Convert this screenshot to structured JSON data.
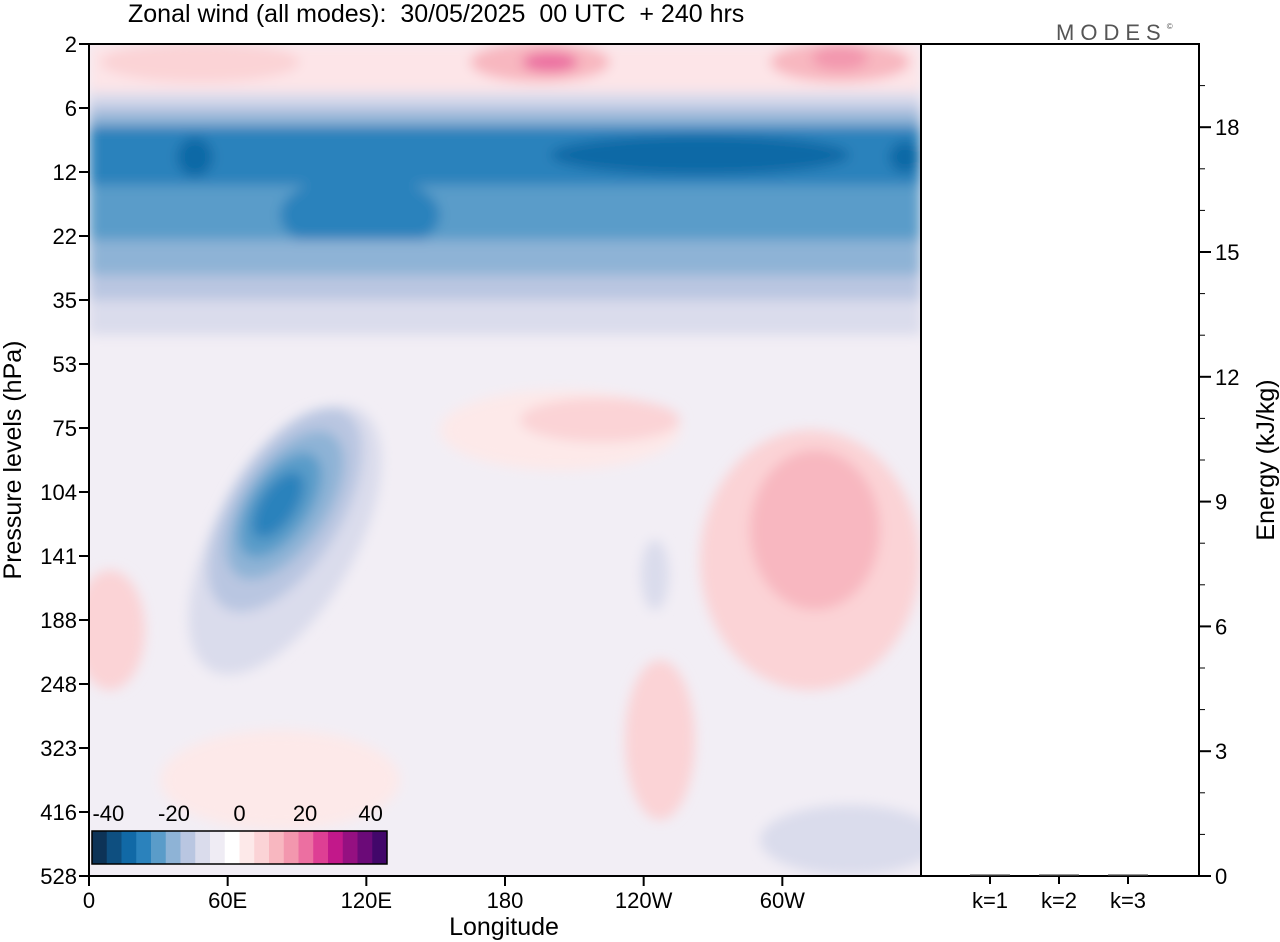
{
  "header": {
    "title": "Zonal wind (all modes):  30/05/2025  00 UTC  + 240 hrs",
    "brand": "MODES",
    "brand_mark": "©"
  },
  "colors": {
    "contour_palette": [
      "#0d3357",
      "#0e4f80",
      "#1169a6",
      "#2b82bc",
      "#5a9cc9",
      "#8eb3d6",
      "#b9c6e1",
      "#dadcec",
      "#efecf4",
      "#ffffff",
      "#fde9e9",
      "#fbd3d6",
      "#f8b7c0",
      "#f397ae",
      "#ec6fa1",
      "#de3f94",
      "#c2188a",
      "#951081",
      "#6b0a78",
      "#42076a"
    ]
  },
  "chart_data": [
    {
      "type": "heatmap",
      "title": "Zonal wind (all modes):  30/05/2025  00 UTC  + 240 hrs",
      "xlabel": "Longitude",
      "ylabel": "Pressure levels (hPa)",
      "x_ticks": [
        "0",
        "60E",
        "120E",
        "180",
        "120W",
        "60W"
      ],
      "y_ticks": [
        "2",
        "6",
        "12",
        "22",
        "35",
        "53",
        "75",
        "104",
        "141",
        "188",
        "248",
        "323",
        "416",
        "528"
      ],
      "colorbar": {
        "tick_labels": [
          "-40",
          "-20",
          "0",
          "20",
          "40"
        ],
        "range": [
          -45,
          45
        ],
        "step": 5
      },
      "features": [
        {
          "name": "upper easterly core",
          "lon_range": [
            0,
            360
          ],
          "levels": "8-14 hPa",
          "value": -35
        },
        {
          "name": "easterly band",
          "lon_range": [
            0,
            360
          ],
          "levels": "14-35 hPa",
          "value": -25
        },
        {
          "name": "upper westerly patch",
          "lon": 300,
          "levels": "2-4 hPa",
          "value": 15
        },
        {
          "name": "easterly jet",
          "lon": 80,
          "levels": "104-141 hPa",
          "value": -25
        },
        {
          "name": "westerly patch",
          "lon": 320,
          "levels": "104-188 hPa",
          "value": 10
        }
      ]
    },
    {
      "type": "bar",
      "categories": [
        "k=1",
        "k=2",
        "k=3"
      ],
      "values": [
        0.02,
        0.01,
        0.01
      ],
      "ylabel": "Energy (kJ/kg)",
      "y_ticks": [
        "0",
        "3",
        "6",
        "9",
        "12",
        "15",
        "18"
      ],
      "ylim": [
        0,
        20
      ]
    }
  ]
}
